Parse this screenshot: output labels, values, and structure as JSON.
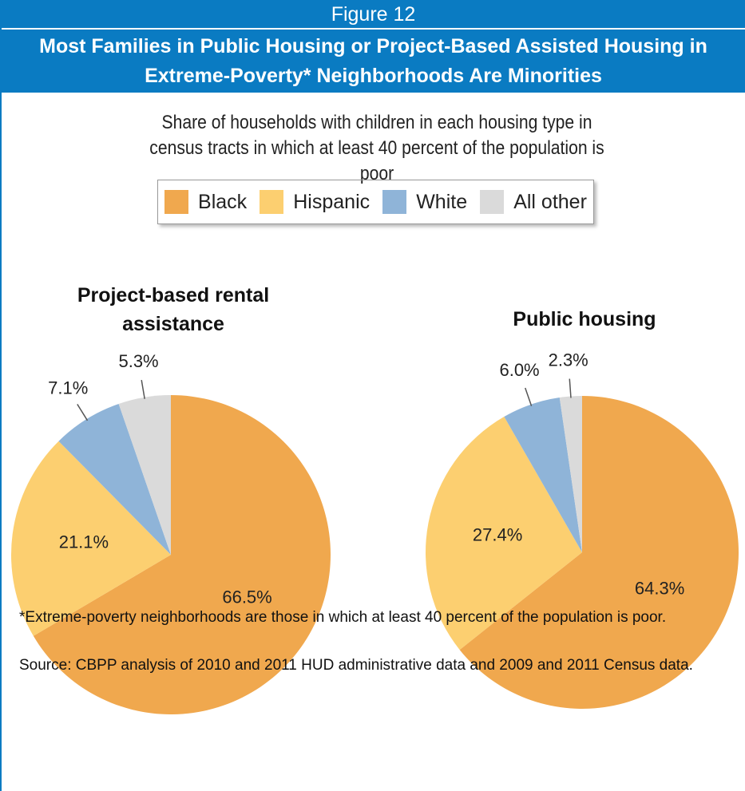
{
  "figure_label": "Figure 12",
  "title": "Most Families in Public Housing or Project-Based Assisted Housing in Extreme-Poverty* Neighborhoods Are Minorities",
  "subtitle": "Share of households with children in each housing type in census tracts in which at least 40 percent of the population is poor",
  "notes": [
    "*Extreme-poverty neighborhoods are those in which at least 40 percent of the population is poor.",
    "Source: CBPP analysis of 2010 and 2011 HUD administrative data and 2009 and 2011 Census data."
  ],
  "chart_data": [
    {
      "type": "pie",
      "title": "Project-based rental assistance",
      "categories": [
        "Black",
        "Hispanic",
        "White",
        "All other"
      ],
      "values": [
        66.5,
        21.1,
        7.1,
        5.3
      ],
      "value_labels": [
        "66.5%",
        "21.1%",
        "7.1%",
        "5.3%"
      ],
      "colors": [
        "#f0a84e",
        "#fccf70",
        "#8fb4d8",
        "#dadada"
      ]
    },
    {
      "type": "pie",
      "title": "Public housing",
      "categories": [
        "Black",
        "Hispanic",
        "White",
        "All other"
      ],
      "values": [
        64.3,
        27.4,
        6.0,
        2.3
      ],
      "value_labels": [
        "64.3%",
        "27.4%",
        "6.0%",
        "2.3%"
      ],
      "colors": [
        "#f0a84e",
        "#fccf70",
        "#8fb4d8",
        "#dadada"
      ]
    }
  ]
}
